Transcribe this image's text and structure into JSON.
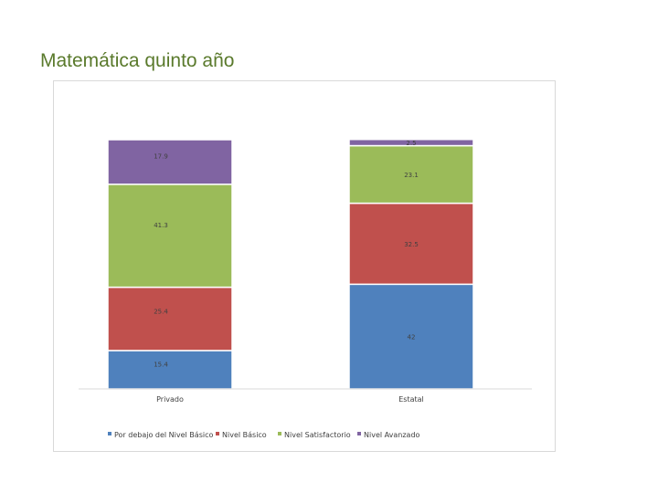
{
  "slide": {
    "title": "Matemática quinto año"
  },
  "chart_data": {
    "type": "bar",
    "stacked": true,
    "categories": [
      "Privado",
      "Estatal"
    ],
    "series": [
      {
        "name": "Por debajo del Nivel Básico",
        "color": "#4f81bd",
        "values": [
          15.4,
          42
        ],
        "labels": [
          "15.4",
          "42"
        ]
      },
      {
        "name": "Nivel Básico",
        "color": "#c0504d",
        "values": [
          25.4,
          32.5
        ],
        "labels": [
          "25.4",
          "32.5"
        ]
      },
      {
        "name": "Nivel Satisfactorio",
        "color": "#9bbb59",
        "values": [
          41.3,
          23.1
        ],
        "labels": [
          "41.3",
          "23.1"
        ]
      },
      {
        "name": "Nivel Avanzado",
        "color": "#8064a2",
        "values": [
          17.9,
          2.5
        ],
        "labels": [
          "17.9",
          "2.5"
        ]
      }
    ],
    "ylim": [
      0,
      100
    ],
    "grid": false,
    "legend": "bottom"
  }
}
